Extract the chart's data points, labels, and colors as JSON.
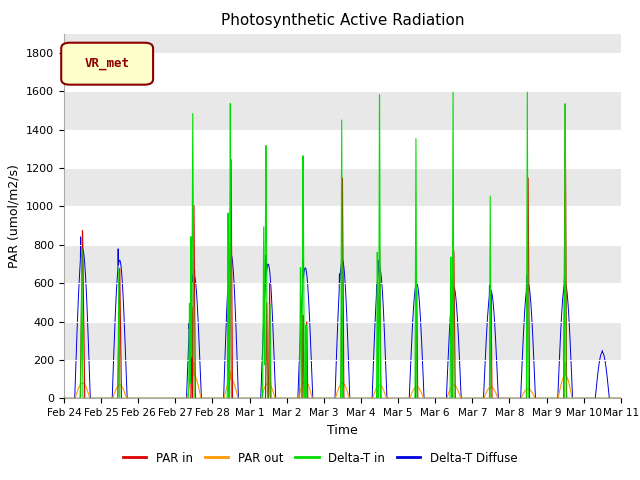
{
  "title": "Photosynthetic Active Radiation",
  "ylabel": "PAR (umol/m2/s)",
  "xlabel": "Time",
  "ylim": [
    0,
    1900
  ],
  "yticks": [
    0,
    200,
    400,
    600,
    800,
    1000,
    1200,
    1400,
    1600,
    1800
  ],
  "colors": {
    "PAR in": "#dd0000",
    "PAR out": "#ff9900",
    "Delta-T in": "#00dd00",
    "Delta-T Diffuse": "#0000dd"
  },
  "legend_label": "VR_met",
  "background_color": "#e8e8e8",
  "grid_color": "#ffffff",
  "num_days": 15,
  "points_per_day": 288,
  "date_labels": [
    "Feb 24",
    "Feb 25",
    "Feb 26",
    "Feb 27",
    "Feb 28",
    "Mar 1",
    "Mar 2",
    "Mar 3",
    "Mar 4",
    "Mar 5",
    "Mar 6",
    "Mar 7",
    "Mar 8",
    "Mar 9",
    "Mar 10",
    "Mar 11"
  ]
}
